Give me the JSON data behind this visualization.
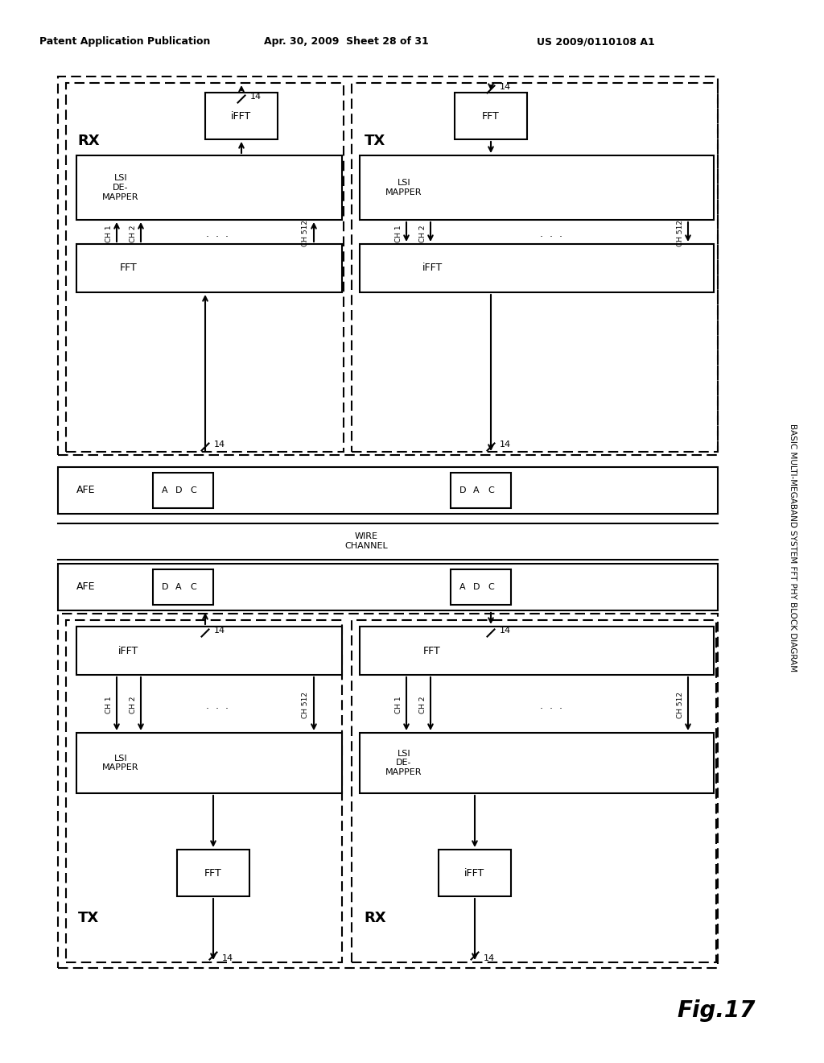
{
  "bg_color": "#ffffff",
  "header_text": "Patent Application Publication",
  "header_date": "Apr. 30, 2009  Sheet 28 of 31",
  "header_patent": "US 2009/0110108 A1",
  "fig_label": "Fig.17",
  "side_label": "BASIC MULTI-MEGABAND SYSTEM FFT PHY BLOCK DIAGRAM",
  "wire_channel_label": "WIRE\nCHANNEL"
}
